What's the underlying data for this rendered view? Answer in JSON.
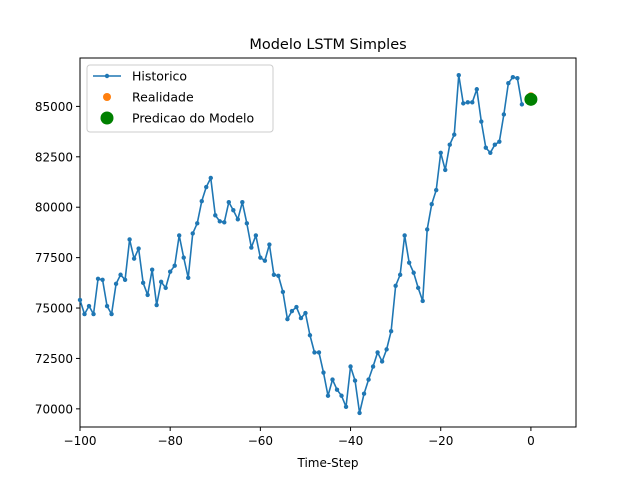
{
  "chart_data": {
    "type": "line",
    "title": "Modelo LSTM Simples",
    "xlabel": "Time-Step",
    "ylabel": "",
    "xlim": [
      -100,
      10
    ],
    "ylim": [
      69100,
      87400
    ],
    "x_ticks": [
      -100,
      -80,
      -60,
      -40,
      -20,
      0
    ],
    "x_tick_labels": [
      "−100",
      "−80",
      "−60",
      "−40",
      "−20",
      "0"
    ],
    "y_ticks": [
      70000,
      72500,
      75000,
      77500,
      80000,
      82500,
      85000
    ],
    "y_tick_labels": [
      "70000",
      "72500",
      "75000",
      "77500",
      "80000",
      "82500",
      "85000"
    ],
    "grid": false,
    "legend_position": "upper-left",
    "series": [
      {
        "name": "Historico",
        "kind": "line-markers",
        "color": "#1f77b4",
        "x_start": -100,
        "x_step": 1,
        "values": [
          75400,
          74700,
          75100,
          74700,
          76450,
          76400,
          75100,
          74700,
          76200,
          76650,
          76400,
          78400,
          77450,
          77950,
          76250,
          75650,
          76900,
          75150,
          76300,
          76000,
          76800,
          77100,
          78600,
          77500,
          76500,
          78700,
          79200,
          80300,
          81000,
          81450,
          79600,
          79300,
          79250,
          80250,
          79850,
          79400,
          80250,
          79200,
          78000,
          78600,
          77500,
          77350,
          78150,
          76650,
          76600,
          75800,
          74450,
          74850,
          75050,
          74500,
          74750,
          73650,
          72800,
          72800,
          71800,
          70650,
          71450,
          70950,
          70650,
          70100,
          72100,
          71400,
          69800,
          70750,
          71450,
          72100,
          72800,
          72350,
          72950,
          73850,
          76100,
          76650,
          78600,
          77250,
          76750,
          76000,
          75350,
          78900,
          80150,
          80850,
          82700,
          81850,
          83100,
          83600,
          86550,
          85150,
          85200,
          85200,
          85850,
          84250,
          82950,
          82700,
          83100,
          83250,
          84600,
          86150,
          86450,
          86400,
          85100
        ]
      },
      {
        "name": "Realidade",
        "kind": "points",
        "color": "#ff7f0e",
        "x": [
          0
        ],
        "values": [
          85500
        ]
      },
      {
        "name": "Predicao do Modelo",
        "kind": "points-large",
        "color": "#008000",
        "x": [
          0
        ],
        "values": [
          85350
        ]
      }
    ]
  }
}
